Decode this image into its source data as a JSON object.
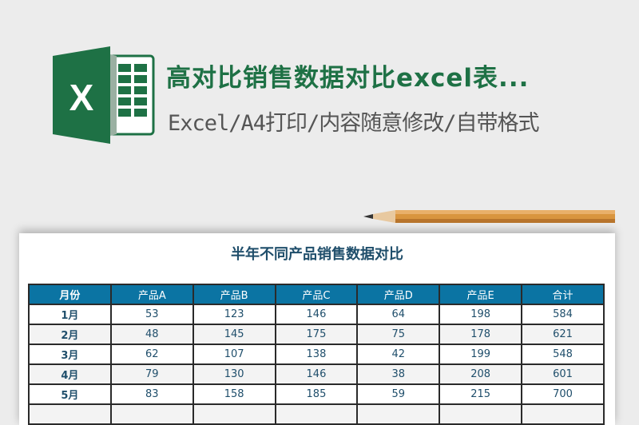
{
  "header": {
    "title": "高对比销售数据对比excel表...",
    "subtitle": "Excel/A4打印/内容随意修改/自带格式",
    "logo_icon": "excel-logo-icon",
    "brand_color": "#1e7145"
  },
  "sheet": {
    "title": "半年不同产品销售数据对比",
    "header_color": "#0b74a3",
    "columns": [
      "月份",
      "产品A",
      "产品B",
      "产品C",
      "产品D",
      "产品E",
      "合计"
    ],
    "rows": [
      [
        "1月",
        "53",
        "123",
        "146",
        "64",
        "198",
        "584"
      ],
      [
        "2月",
        "48",
        "145",
        "175",
        "75",
        "178",
        "621"
      ],
      [
        "3月",
        "62",
        "107",
        "138",
        "42",
        "199",
        "548"
      ],
      [
        "4月",
        "79",
        "130",
        "146",
        "38",
        "208",
        "601"
      ],
      [
        "5月",
        "83",
        "158",
        "185",
        "59",
        "215",
        "700"
      ],
      [
        "",
        "",
        "",
        "",
        "",
        "",
        ""
      ]
    ]
  }
}
